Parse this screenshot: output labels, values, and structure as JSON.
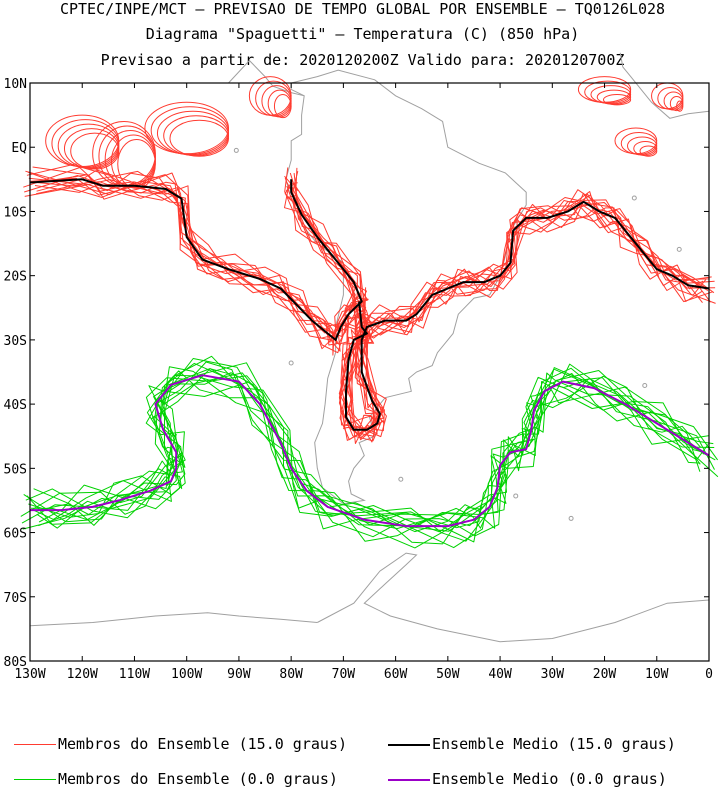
{
  "header": {
    "line1": "CPTEC/INPE/MCT – PREVISAO DE TEMPO GLOBAL POR ENSEMBLE – TQ0126L028",
    "line2": "Diagrama \"Spaguetti\" – Temperatura (C) (850 hPa)",
    "line3": "Previsao a partir de: 2020120200Z  Valido para: 2020120700Z"
  },
  "legend": {
    "members_15": "Membros do Ensemble (15.0 graus)",
    "mean_15": "Ensemble Medio (15.0 graus)",
    "members_0": "Membros do Ensemble (0.0 graus)",
    "mean_0": "Ensemble Medio (0.0 graus)"
  },
  "colors": {
    "members_15": "#ff3b30",
    "mean_15": "#000000",
    "members_0": "#00d200",
    "mean_0": "#9b00c8",
    "coast": "#a0a0a0"
  },
  "chart_data": {
    "type": "line",
    "xlim": [
      -130,
      0
    ],
    "ylim": [
      -80,
      10
    ],
    "x_ticks": [
      "130W",
      "120W",
      "110W",
      "100W",
      "90W",
      "80W",
      "70W",
      "60W",
      "50W",
      "40W",
      "30W",
      "20W",
      "10W",
      "0"
    ],
    "y_ticks": [
      "10N",
      "EQ",
      "10S",
      "20S",
      "30S",
      "40S",
      "50S",
      "60S",
      "70S",
      "80S"
    ],
    "series": [
      {
        "name": "Ensemble Medio (15.0 graus)",
        "segments": [
          [
            [
              -130,
              -5.5
            ],
            [
              -120,
              -5
            ],
            [
              -116,
              -6
            ],
            [
              -110,
              -6
            ],
            [
              -104,
              -6.5
            ],
            [
              -101,
              -8
            ],
            [
              -100,
              -14
            ],
            [
              -97,
              -17.5
            ],
            [
              -92,
              -19
            ],
            [
              -86,
              -20.5
            ],
            [
              -82,
              -22
            ],
            [
              -79,
              -24.5
            ],
            [
              -76,
              -27
            ],
            [
              -73,
              -29
            ],
            [
              -71.5,
              -30
            ],
            [
              -70.5,
              -28
            ],
            [
              -69,
              -26
            ],
            [
              -66.5,
              -24
            ],
            [
              -68,
              -21
            ],
            [
              -72,
              -17
            ],
            [
              -75,
              -14
            ],
            [
              -78,
              -10.5
            ],
            [
              -80,
              -7
            ],
            [
              -80,
              -5
            ]
          ],
          [
            [
              -67,
              -24
            ],
            [
              -66.5,
              -28
            ],
            [
              -65.5,
              -29
            ],
            [
              -68,
              -30
            ],
            [
              -69,
              -33
            ],
            [
              -69.5,
              -38
            ],
            [
              -69.5,
              -42
            ],
            [
              -68,
              -44
            ],
            [
              -65.5,
              -44
            ],
            [
              -63.5,
              -43
            ],
            [
              -63,
              -41.5
            ],
            [
              -64.5,
              -39.5
            ],
            [
              -66.5,
              -35
            ],
            [
              -66.5,
              -30
            ],
            [
              -65.5,
              -28
            ],
            [
              -62,
              -27
            ],
            [
              -58,
              -27
            ],
            [
              -56,
              -26
            ],
            [
              -53,
              -23
            ],
            [
              -50,
              -22
            ],
            [
              -47,
              -21
            ],
            [
              -43,
              -21
            ],
            [
              -40,
              -20
            ],
            [
              -38,
              -18
            ],
            [
              -37.5,
              -13
            ],
            [
              -35,
              -11
            ],
            [
              -31,
              -11
            ],
            [
              -27,
              -10
            ],
            [
              -24,
              -8.5
            ],
            [
              -21,
              -10
            ],
            [
              -18,
              -11
            ],
            [
              -16,
              -13
            ],
            [
              -13,
              -16
            ],
            [
              -10,
              -19
            ],
            [
              -7,
              -20
            ],
            [
              -4,
              -21.5
            ],
            [
              0,
              -22
            ]
          ]
        ]
      },
      {
        "name": "Ensemble Medio (0.0 graus)",
        "segments": [
          [
            [
              -130,
              -56.5
            ],
            [
              -124,
              -56.5
            ],
            [
              -118,
              -56
            ],
            [
              -113,
              -55
            ],
            [
              -107,
              -53.5
            ],
            [
              -103,
              -52
            ],
            [
              -102,
              -50
            ],
            [
              -102,
              -47.5
            ],
            [
              -104.5,
              -44
            ],
            [
              -106,
              -40
            ],
            [
              -103,
              -37
            ],
            [
              -97,
              -35.5
            ],
            [
              -90,
              -36.5
            ],
            [
              -86,
              -40
            ],
            [
              -82,
              -46
            ],
            [
              -80,
              -50
            ],
            [
              -77,
              -53.5
            ],
            [
              -73,
              -56
            ],
            [
              -66,
              -58
            ],
            [
              -58,
              -59
            ],
            [
              -50,
              -59
            ],
            [
              -45,
              -58
            ],
            [
              -42,
              -56
            ],
            [
              -40.5,
              -53
            ],
            [
              -40,
              -49.5
            ],
            [
              -38,
              -47.5
            ],
            [
              -35,
              -47
            ],
            [
              -34,
              -44
            ],
            [
              -33.5,
              -41
            ],
            [
              -31.5,
              -38
            ],
            [
              -28,
              -36.5
            ],
            [
              -22,
              -37.5
            ],
            [
              -16,
              -40
            ],
            [
              -10,
              -43
            ],
            [
              -4,
              -46
            ],
            [
              0,
              -48
            ]
          ]
        ]
      }
    ]
  }
}
